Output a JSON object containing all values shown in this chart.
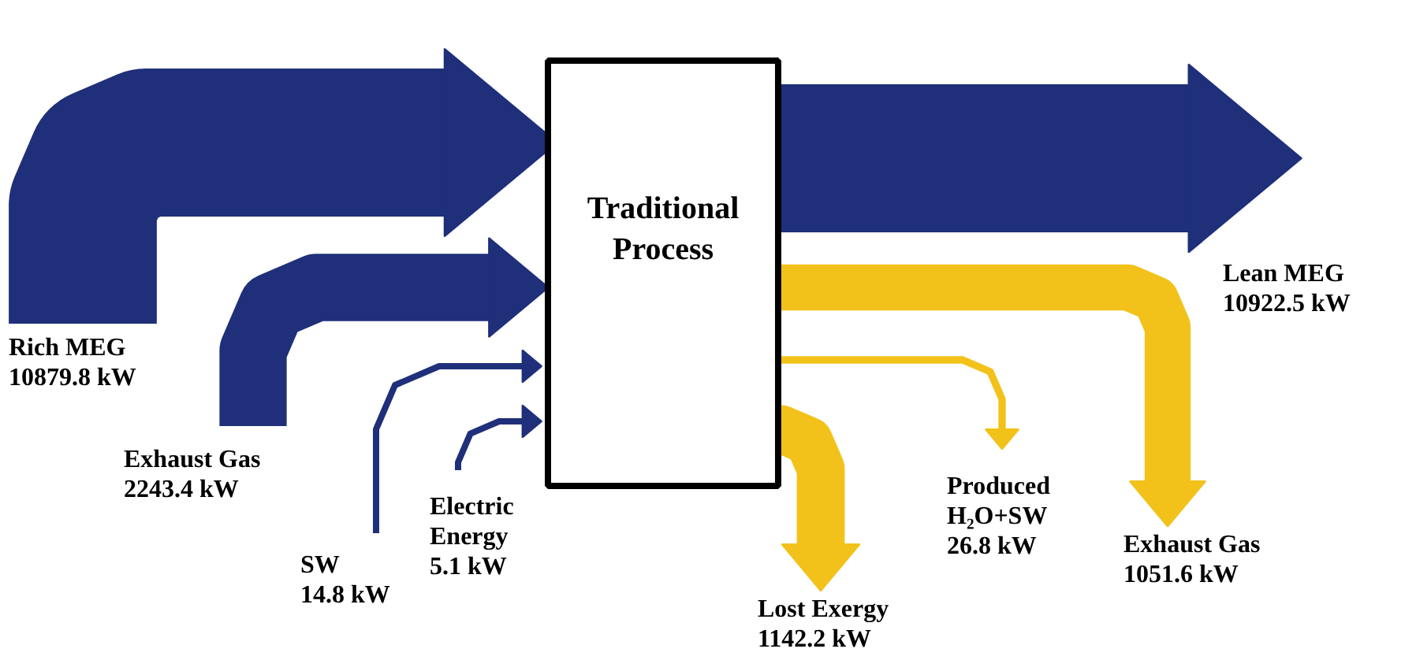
{
  "chart_data": {
    "type": "other",
    "title": "Traditional Process",
    "categories": [
      "Rich MEG",
      "Exhaust Gas",
      "SW",
      "Electric Energy",
      "Lean MEG",
      "Lost Exergy",
      "Produced H₂O+SW",
      "Exhaust Gas"
    ],
    "series": [
      {
        "color": "#1f2f7a",
        "values": [
          10879.8,
          2243.4,
          14.8,
          5.1,
          null,
          null,
          null,
          null
        ],
        "value_labels": [
          "10879.8 kW",
          "2243.4 kW",
          "14.8 kW",
          "5.1 kW",
          null,
          null,
          null,
          null
        ]
      },
      {
        "color": "#1f2f7a",
        "values": [
          null,
          null,
          null,
          null,
          10922.5,
          null,
          null,
          null
        ],
        "value_labels": [
          null,
          null,
          null,
          null,
          "10922.5 kW",
          null,
          null,
          null
        ]
      },
      {
        "color": "#f2c21b",
        "values": [
          null,
          null,
          null,
          null,
          null,
          1142.2,
          26.8,
          1051.6
        ],
        "value_labels": [
          null,
          null,
          null,
          null,
          null,
          "1142.2 kW",
          "26.8 kW",
          "1051.6 kW"
        ]
      }
    ]
  }
}
